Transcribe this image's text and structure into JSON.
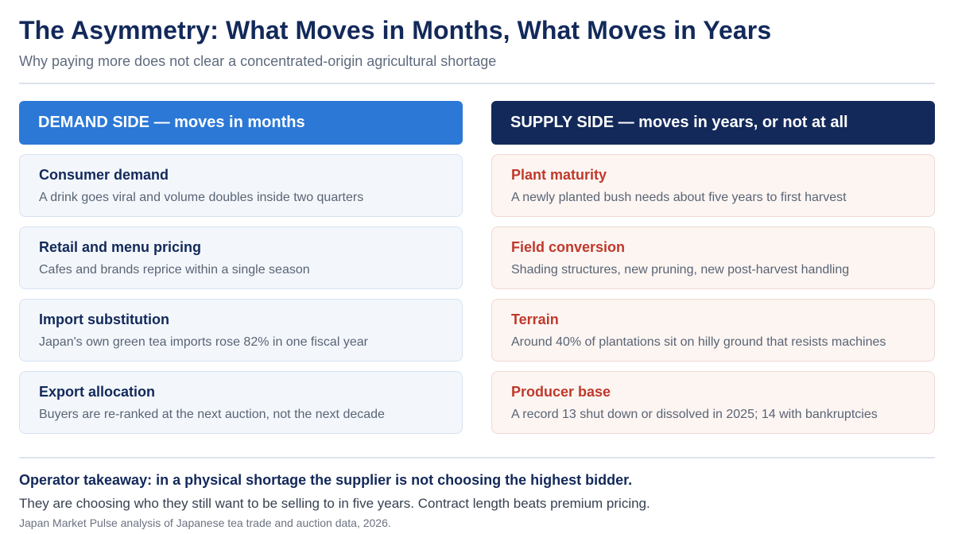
{
  "title": "The Asymmetry: What Moves in Months, What Moves in Years",
  "subtitle": "Why paying more does not clear a concentrated-origin agricultural shortage",
  "demand": {
    "header": "DEMAND SIDE — moves in months",
    "color": "#2b78d6",
    "items": [
      {
        "title": "Consumer demand",
        "desc": "A drink goes viral and volume doubles inside two quarters"
      },
      {
        "title": "Retail and menu pricing",
        "desc": "Cafes and brands reprice within a single season"
      },
      {
        "title": "Import substitution",
        "desc": "Japan's own green tea imports rose 82% in one fiscal year"
      },
      {
        "title": "Export allocation",
        "desc": "Buyers are re-ranked at the next auction, not the next decade"
      }
    ]
  },
  "supply": {
    "header": "SUPPLY SIDE — moves in years, or not at all",
    "color": "#13295a",
    "accent": "#c0392b",
    "items": [
      {
        "title": "Plant maturity",
        "desc": "A newly planted bush needs about five years to first harvest"
      },
      {
        "title": "Field conversion",
        "desc": "Shading structures, new pruning, new post-harvest handling"
      },
      {
        "title": "Terrain",
        "desc": "Around 40% of plantations sit on hilly ground that resists machines"
      },
      {
        "title": "Producer base",
        "desc": "A record 13 shut down or dissolved in 2025; 14 with bankruptcies"
      }
    ]
  },
  "takeaway": {
    "headline": "Operator takeaway: in a physical shortage the supplier is not choosing the highest bidder.",
    "detail": "They are choosing who they still want to be selling to in five years. Contract length beats premium pricing."
  },
  "source": "Japan Market Pulse analysis of Japanese tea trade and auction data, 2026."
}
